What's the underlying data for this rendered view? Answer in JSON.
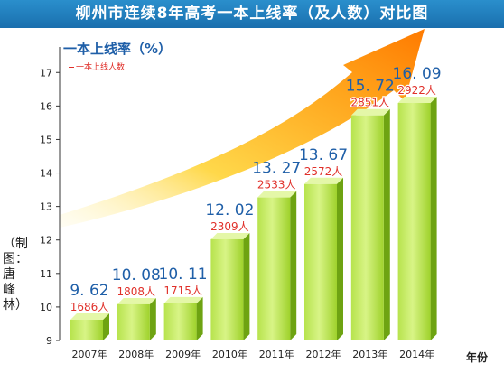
{
  "title": "柳州市连续8年高考一本上线率（及人数）对比图",
  "credit": "（制图：唐峰林）",
  "legend": {
    "rate": "一本上线率（%）",
    "count": "一本上线人数"
  },
  "colors": {
    "bar_light": "#c7ec6a",
    "bar_mid": "#9fd22c",
    "bar_dark": "#6ea312",
    "rate_text": "#1f5fa8",
    "count_text": "#e0302a",
    "title_bg": "#1a6fae"
  },
  "chart_data": {
    "type": "bar",
    "title": "柳州市连续8年高考一本上线率（及人数）对比图",
    "xlabel": "年份",
    "ylabel": "",
    "ylim": [
      9,
      17.6
    ],
    "yticks": [
      9,
      10,
      11,
      12,
      13,
      14,
      15,
      16,
      17
    ],
    "categories": [
      "2007年",
      "2008年",
      "2009年",
      "2010年",
      "2011年",
      "2012年",
      "2013年",
      "2014年"
    ],
    "series": [
      {
        "name": "一本上线率（%）",
        "values": [
          9.62,
          10.08,
          10.11,
          12.02,
          13.27,
          13.67,
          15.72,
          16.09
        ],
        "labels": [
          "9. 62",
          "10. 08",
          "10. 11",
          "12. 02",
          "13. 27",
          "13. 67",
          "15. 72",
          "16. 09"
        ]
      },
      {
        "name": "一本上线人数",
        "values": [
          1686,
          1808,
          1715,
          2309,
          2533,
          2572,
          2851,
          2922
        ],
        "labels": [
          "1686人",
          "1808人",
          "1715人",
          "2309人",
          "2533人",
          "2572人",
          "2851人",
          "2922人"
        ]
      }
    ],
    "grid": false,
    "legend_position": "top-left"
  }
}
